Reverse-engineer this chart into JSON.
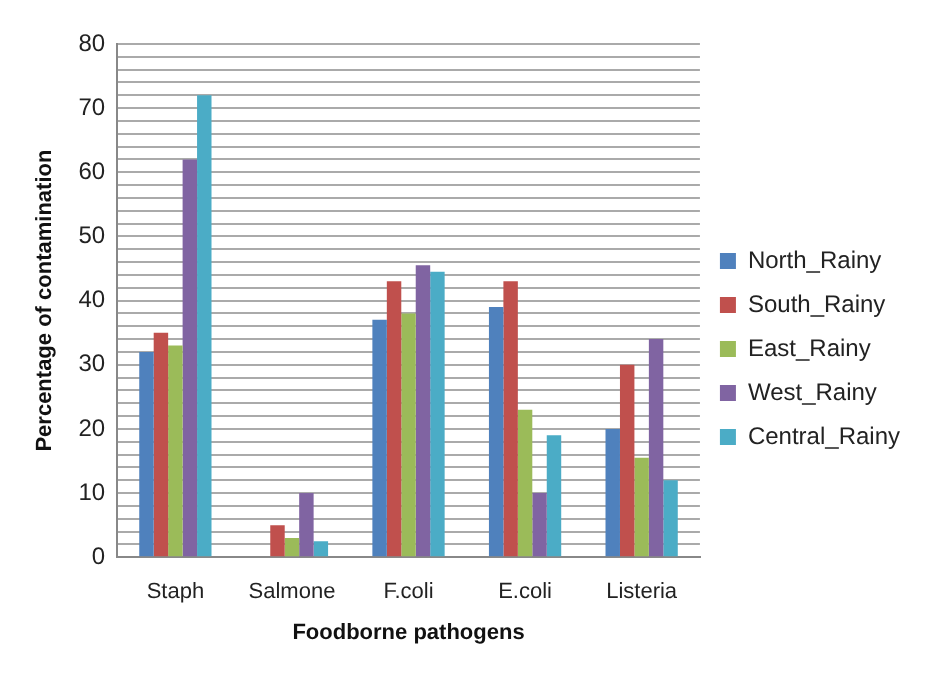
{
  "chart_data": {
    "type": "bar",
    "xlabel": "Foodborne pathogens",
    "ylabel": "Percentage of contamination",
    "categories": [
      "Staph",
      "Salmone",
      "F.coli",
      "E.coli",
      "Listeria"
    ],
    "series": [
      {
        "name": "North_Rainy",
        "color": "#4f81bd",
        "values": [
          32,
          0,
          37,
          39,
          20
        ]
      },
      {
        "name": "South_Rainy",
        "color": "#c0504d",
        "values": [
          35,
          5,
          43,
          43,
          30
        ]
      },
      {
        "name": "East_Rainy",
        "color": "#9bbb59",
        "values": [
          33,
          3,
          38,
          23,
          15.5
        ]
      },
      {
        "name": "West_Rainy",
        "color": "#8064a2",
        "values": [
          62,
          10,
          45.5,
          10,
          34
        ]
      },
      {
        "name": "Central_Rainy",
        "color": "#4bacc6",
        "values": [
          72,
          2.5,
          44.5,
          19,
          12
        ]
      }
    ],
    "ylim": [
      0,
      80
    ],
    "yticks": [
      0,
      {
        "value": 2,
        "label": null
      },
      {
        "value": 4,
        "label": null
      },
      {
        "value": 6,
        "label": null
      },
      {
        "value": 8,
        "label": null
      },
      10,
      {
        "value": 12,
        "label": null
      },
      {
        "value": 14,
        "label": null
      },
      {
        "value": 16,
        "label": null
      },
      {
        "value": 18,
        "label": null
      },
      20,
      {
        "value": 22,
        "label": null
      },
      {
        "value": 24,
        "label": null
      },
      {
        "value": 26,
        "label": null
      },
      {
        "value": 28,
        "label": null
      },
      30,
      {
        "value": 32,
        "label": null
      },
      {
        "value": 34,
        "label": null
      },
      {
        "value": 36,
        "label": null
      },
      {
        "value": 38,
        "label": null
      },
      40,
      {
        "value": 42,
        "label": null
      },
      {
        "value": 44,
        "label": null
      },
      {
        "value": 46,
        "label": null
      },
      {
        "value": 48,
        "label": null
      },
      50,
      {
        "value": 52,
        "label": null
      },
      {
        "value": 54,
        "label": null
      },
      {
        "value": 56,
        "label": null
      },
      {
        "value": 58,
        "label": null
      },
      60,
      {
        "value": 62,
        "label": null
      },
      {
        "value": 64,
        "label": null
      },
      {
        "value": 66,
        "label": null
      },
      {
        "value": 68,
        "label": null
      },
      70,
      {
        "value": 72,
        "label": null
      },
      {
        "value": 74,
        "label": null
      },
      {
        "value": 76,
        "label": null
      },
      {
        "value": 78,
        "label": null
      },
      80
    ],
    "grid": "y",
    "legend": "right"
  }
}
